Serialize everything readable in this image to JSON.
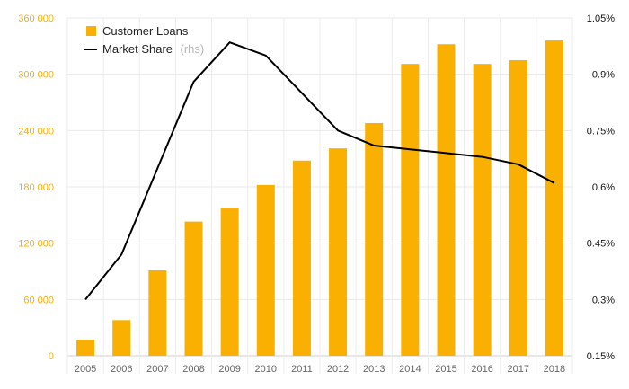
{
  "chart_data": {
    "type": "bar",
    "categories": [
      "2005",
      "2006",
      "2007",
      "2008",
      "2009",
      "2010",
      "2011",
      "2012",
      "2013",
      "2014",
      "2015",
      "2016",
      "2017",
      "2018"
    ],
    "series": [
      {
        "name": "Customer Loans",
        "type": "bar",
        "axis": "left",
        "color": "#f9b000",
        "values": [
          17000,
          38000,
          91000,
          143000,
          157000,
          182000,
          208000,
          221000,
          248000,
          311000,
          332000,
          311000,
          315000,
          336000
        ]
      },
      {
        "name": "Market Share",
        "name_suffix": "(rhs)",
        "type": "line",
        "axis": "right",
        "color": "#000000",
        "values": [
          0.3,
          0.42,
          0.65,
          0.88,
          0.985,
          0.95,
          0.85,
          0.75,
          0.71,
          0.7,
          0.69,
          0.68,
          0.66,
          0.61
        ]
      }
    ],
    "left_axis": {
      "ylim": [
        0,
        360000
      ],
      "ticks": [
        0,
        60000,
        120000,
        180000,
        240000,
        300000,
        360000
      ],
      "tick_labels": [
        "0",
        "60 000",
        "120 000",
        "180 000",
        "240 000",
        "300 000",
        "360 000"
      ],
      "color": "#f5b000"
    },
    "right_axis": {
      "ylim": [
        0.15,
        1.05
      ],
      "ticks": [
        0.15,
        0.3,
        0.45,
        0.6,
        0.75,
        0.9,
        1.05
      ],
      "tick_labels": [
        "0.15%",
        "0.3%",
        "0.45%",
        "0.6%",
        "0.75%",
        "0.9%",
        "1.05%"
      ],
      "color": "#111111"
    },
    "title": "",
    "xlabel": "",
    "ylabel": "",
    "grid": true,
    "legend_position": "top-left"
  }
}
